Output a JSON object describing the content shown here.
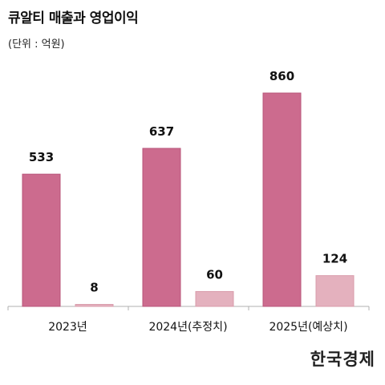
{
  "title": "큐알티 매출과 영업이익",
  "unit": "(단위 : 억원)",
  "logo": "한국경제",
  "colors": {
    "revenue": "#cc6b8e",
    "operating_profit": "#e4b1be",
    "axis": "#b0b0b0"
  },
  "chart_data": {
    "type": "bar",
    "categories": [
      "2023년",
      "2024년(추정치)",
      "2025년(예상치)"
    ],
    "series": [
      {
        "values": [
          533,
          637,
          860
        ]
      },
      {
        "values": [
          8,
          60,
          124
        ]
      }
    ],
    "ylim": [
      0,
      860
    ],
    "grid": false,
    "legend": "none"
  }
}
